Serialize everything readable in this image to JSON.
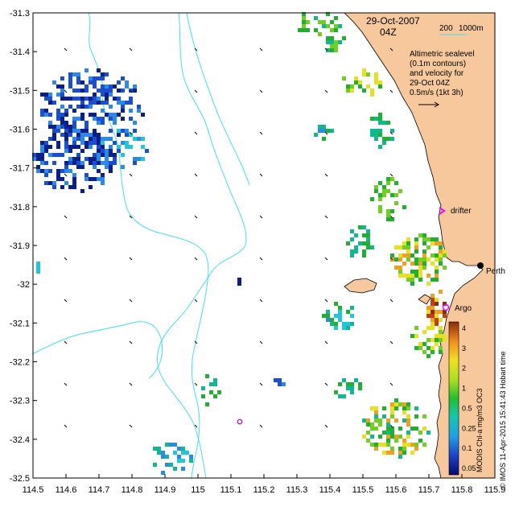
{
  "map": {
    "date_title": "29-Oct-2007",
    "time_title": "04Z",
    "bathy_label": "200",
    "bathy_label2": "1000m",
    "legend_lines": [
      "Altimetric sealevel",
      "(0.1m contours)",
      "and velocity for",
      "29-Oct 04Z",
      "0.5m/s (1kt 3h)"
    ],
    "x_ticks": [
      "114.5",
      "114.6",
      "114.7",
      "114.8",
      "114.9",
      "115",
      "115.1",
      "115.2",
      "115.3",
      "115.4",
      "115.5",
      "115.6",
      "115.7",
      "115.8",
      "115.9"
    ],
    "y_ticks": [
      "-31.3",
      "-31.4",
      "-31.5",
      "-31.6",
      "-31.7",
      "-31.8",
      "-31.9",
      "-32",
      "-32.1",
      "-32.2",
      "-32.3",
      "-32.4",
      "-32.5"
    ],
    "lon_range": [
      114.5,
      115.9
    ],
    "lat_range": [
      -32.5,
      -31.3
    ],
    "labels": {
      "drifter": "drifter",
      "argo": "Argo",
      "perth": "Perth"
    },
    "colorbar": {
      "title": "MODIS Chl-a mg/m3 OC3",
      "ticks": [
        "4",
        "3",
        "2",
        "1",
        "0.5",
        "0.25",
        "0.1",
        "0.05"
      ]
    },
    "credit": "© IMOS 11-Apr-2015 15:41:43 Hobart time",
    "colors": {
      "land": "#f7c89c",
      "contour": "#40e0f0",
      "drifter": "#ff00ff"
    }
  }
}
